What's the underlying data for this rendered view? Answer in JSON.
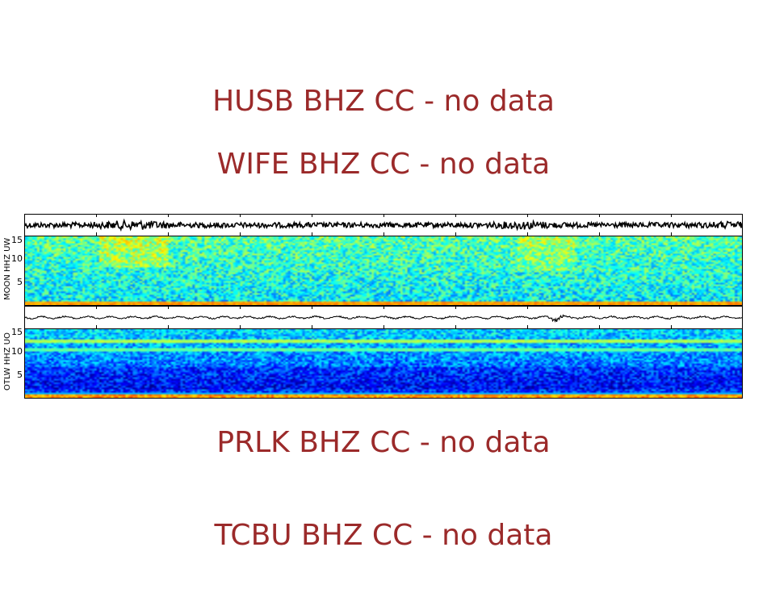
{
  "no_data_messages": [
    {
      "text": "HUSB BHZ CC - no data"
    },
    {
      "text": "WIFE BHZ CC - no data"
    },
    {
      "text": "PRLK BHZ CC - no data"
    },
    {
      "text": "TCBU BHZ CC - no data"
    }
  ],
  "colors": {
    "no_data_text": "#9b2a2a",
    "waveform": "#000000",
    "frame": "#000000"
  },
  "chart_data": [
    {
      "type": "heatmap",
      "title": "MOON HHZ UW",
      "ylabel": "MOON HHZ UW",
      "yticks": [
        "5",
        "10",
        "15"
      ],
      "ylim": [
        0,
        16
      ],
      "xticks_count": 9,
      "colormap": "jet",
      "waveform": "continuous seismic trace with higher amplitude near x≈15% and x≈70%",
      "notes": "spectrogram mostly cyan/light-blue, greener at top (10-16 Hz), yellow band near 0-1 Hz"
    },
    {
      "type": "heatmap",
      "title": "OTLW HHZ UO",
      "ylabel": "OTLW HHZ UO",
      "yticks": [
        "5",
        "10",
        "15"
      ],
      "ylim": [
        0,
        16
      ],
      "xticks_count": 9,
      "colormap": "jet",
      "waveform": "low-amplitude trace with burst near x≈73%",
      "notes": "spectrogram dark blue at low frequencies (1-7 Hz), horizontal green bands near 13-14 Hz and 11-12 Hz, yellow/orange band at 0-1 Hz"
    }
  ]
}
